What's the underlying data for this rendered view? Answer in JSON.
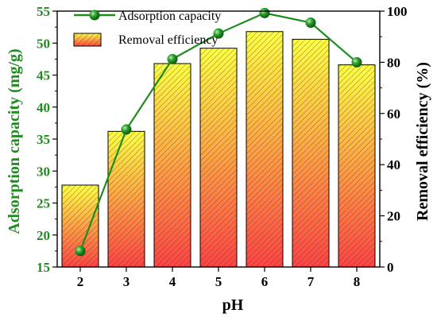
{
  "chart_data": {
    "type": "bar+line",
    "x": [
      "2",
      "3",
      "4",
      "5",
      "6",
      "7",
      "8"
    ],
    "xlabel": "pH",
    "left_axis": {
      "label": "Adsorption capacity (mg/g)",
      "range": [
        15,
        55
      ],
      "ticks": [
        "15",
        "20",
        "25",
        "30",
        "35",
        "40",
        "45",
        "50",
        "55"
      ],
      "color": "#1e8c1e"
    },
    "right_axis": {
      "label": "Removal efficiency (%)",
      "range": [
        0,
        100
      ],
      "ticks": [
        "0",
        "20",
        "40",
        "60",
        "80",
        "100"
      ],
      "color": "#000000"
    },
    "series": [
      {
        "name": "Adsorption capacity",
        "type": "line",
        "axis": "left",
        "values": [
          17.5,
          36.5,
          47.5,
          51.5,
          54.7,
          53.2,
          47.0
        ],
        "color": "#1e8c1e"
      },
      {
        "name": "Removal efficiency",
        "type": "bar",
        "axis": "right",
        "values": [
          32,
          53,
          79.5,
          85.5,
          92,
          89,
          79
        ],
        "fill_top": "#ffff44",
        "fill_bottom": "#ff4444",
        "hatch": "diagonal"
      }
    ],
    "legend": {
      "placement": "top-left",
      "items": [
        "Adsorption capacity",
        "Removal efficiency"
      ]
    },
    "grid": false
  }
}
